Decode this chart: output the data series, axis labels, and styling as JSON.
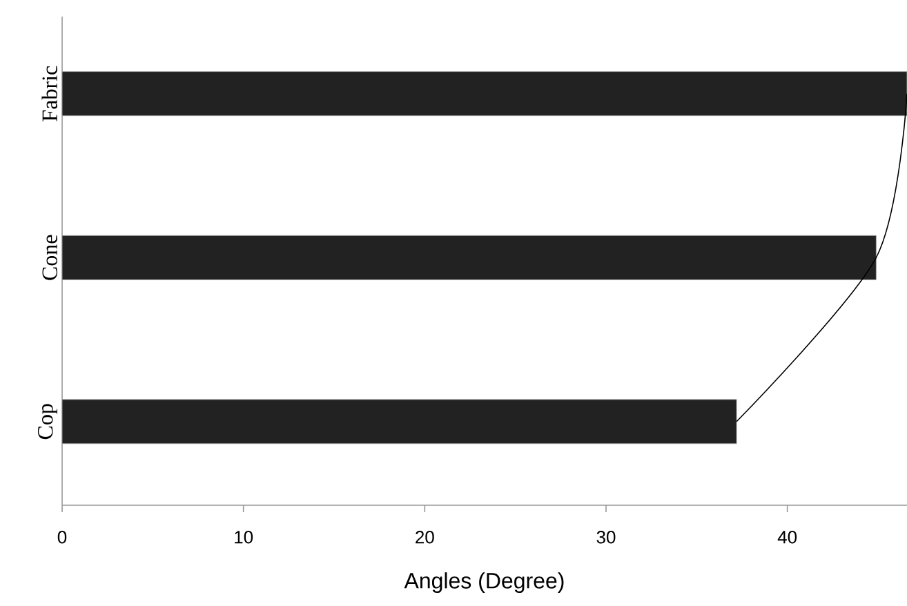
{
  "chart_data": {
    "type": "bar",
    "orientation": "horizontal",
    "xlabel": "Angles (Degree)",
    "categories": [
      "Fabric",
      "Cone",
      "Cop"
    ],
    "xlim": [
      0,
      46.6
    ],
    "xticks": [
      0,
      10,
      20,
      30,
      40
    ],
    "series": [
      {
        "color": "#222222",
        "values": [
          46.6,
          44.9,
          37.2
        ]
      },
      {
        "type": "line",
        "color": "#000000",
        "values": [
          46.6,
          44.9,
          37.2
        ]
      }
    ]
  }
}
